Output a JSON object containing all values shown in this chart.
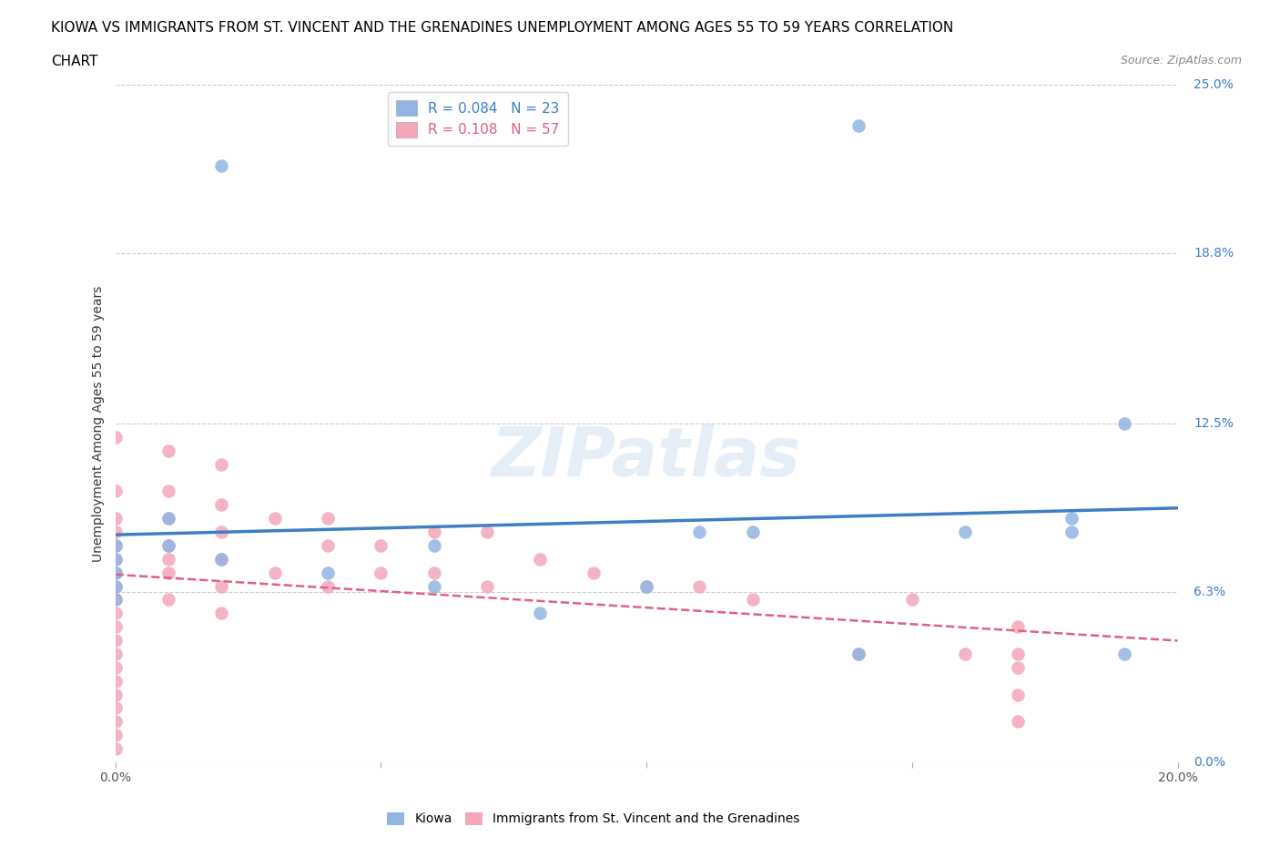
{
  "title_line1": "KIOWA VS IMMIGRANTS FROM ST. VINCENT AND THE GRENADINES UNEMPLOYMENT AMONG AGES 55 TO 59 YEARS CORRELATION",
  "title_line2": "CHART",
  "source": "Source: ZipAtlas.com",
  "ylabel": "Unemployment Among Ages 55 to 59 years",
  "xlim": [
    0.0,
    0.2
  ],
  "ylim": [
    0.0,
    0.25
  ],
  "yticks": [
    0.0,
    0.063,
    0.125,
    0.188,
    0.25
  ],
  "ytick_labels": [
    "0.0%",
    "6.3%",
    "12.5%",
    "18.8%",
    "25.0%"
  ],
  "xticks": [
    0.0,
    0.05,
    0.1,
    0.15,
    0.2
  ],
  "xtick_labels": [
    "0.0%",
    "",
    "",
    "",
    "20.0%"
  ],
  "kiowa_R": 0.084,
  "kiowa_N": 23,
  "svg_R": 0.108,
  "svg_N": 57,
  "kiowa_color": "#92b4e3",
  "svg_color": "#f4a7b9",
  "trend_kiowa_color": "#3d7ec4",
  "trend_svg_color": "#e06080",
  "background_color": "#ffffff",
  "grid_color": "#cccccc",
  "watermark": "ZIPatlas",
  "kiowa_x": [
    0.0,
    0.0,
    0.0,
    0.0,
    0.0,
    0.01,
    0.01,
    0.02,
    0.02,
    0.04,
    0.06,
    0.06,
    0.08,
    0.1,
    0.11,
    0.12,
    0.14,
    0.14,
    0.16,
    0.18,
    0.18,
    0.19,
    0.19
  ],
  "kiowa_y": [
    0.08,
    0.075,
    0.07,
    0.065,
    0.06,
    0.09,
    0.08,
    0.22,
    0.075,
    0.07,
    0.065,
    0.08,
    0.055,
    0.065,
    0.085,
    0.085,
    0.04,
    0.235,
    0.085,
    0.09,
    0.085,
    0.125,
    0.04
  ],
  "svg_x": [
    0.0,
    0.0,
    0.0,
    0.0,
    0.0,
    0.0,
    0.0,
    0.0,
    0.0,
    0.0,
    0.0,
    0.0,
    0.0,
    0.0,
    0.0,
    0.0,
    0.0,
    0.0,
    0.0,
    0.0,
    0.01,
    0.01,
    0.01,
    0.01,
    0.01,
    0.01,
    0.01,
    0.02,
    0.02,
    0.02,
    0.02,
    0.02,
    0.02,
    0.03,
    0.03,
    0.04,
    0.04,
    0.04,
    0.05,
    0.05,
    0.06,
    0.06,
    0.07,
    0.07,
    0.08,
    0.09,
    0.1,
    0.11,
    0.12,
    0.14,
    0.15,
    0.16,
    0.17,
    0.17,
    0.17,
    0.17,
    0.17
  ],
  "svg_y": [
    0.12,
    0.1,
    0.09,
    0.085,
    0.08,
    0.075,
    0.07,
    0.065,
    0.06,
    0.055,
    0.05,
    0.045,
    0.04,
    0.035,
    0.03,
    0.025,
    0.02,
    0.015,
    0.01,
    0.005,
    0.115,
    0.1,
    0.09,
    0.08,
    0.075,
    0.07,
    0.06,
    0.11,
    0.095,
    0.085,
    0.075,
    0.065,
    0.055,
    0.09,
    0.07,
    0.09,
    0.08,
    0.065,
    0.08,
    0.07,
    0.085,
    0.07,
    0.085,
    0.065,
    0.075,
    0.07,
    0.065,
    0.065,
    0.06,
    0.04,
    0.06,
    0.04,
    0.05,
    0.04,
    0.035,
    0.025,
    0.015
  ]
}
